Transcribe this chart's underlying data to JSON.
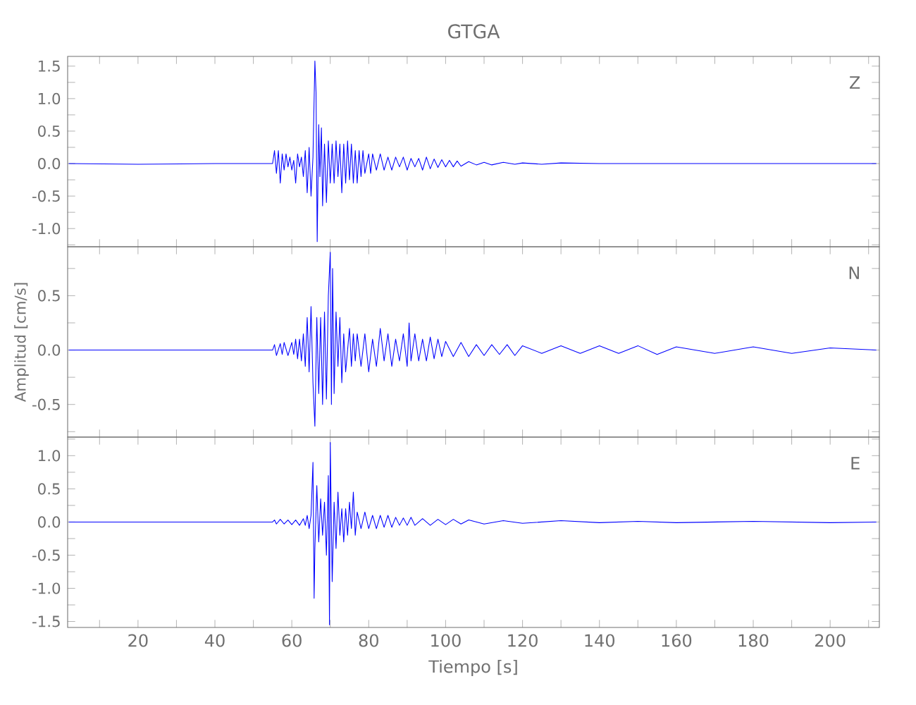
{
  "chart_data": [
    {
      "type": "line",
      "title": "GTGA",
      "annotations": [
        "Z"
      ],
      "tick_labels": "y",
      "xlim": [
        1.7,
        212.8
      ],
      "ylim": [
        -1.28,
        1.65
      ],
      "xticks": [
        {
          "value": 10,
          "label": null
        },
        {
          "value": 20,
          "label": null
        },
        {
          "value": 30,
          "label": null
        },
        {
          "value": 40,
          "label": null
        },
        {
          "value": 50,
          "label": null
        },
        {
          "value": 60,
          "label": null
        },
        {
          "value": 70,
          "label": null
        },
        {
          "value": 80,
          "label": null
        },
        {
          "value": 90,
          "label": null
        },
        {
          "value": 100,
          "label": null
        },
        {
          "value": 110,
          "label": null
        },
        {
          "value": 120,
          "label": null
        },
        {
          "value": 130,
          "label": null
        },
        {
          "value": 140,
          "label": null
        },
        {
          "value": 150,
          "label": null
        },
        {
          "value": 160,
          "label": null
        },
        {
          "value": 170,
          "label": null
        },
        {
          "value": 180,
          "label": null
        },
        {
          "value": 190,
          "label": null
        },
        {
          "value": 200,
          "label": null
        },
        {
          "value": 210,
          "label": null
        }
      ],
      "yticks": [
        {
          "value": -1.25,
          "label": null
        },
        {
          "value": -1.0,
          "label": "-1.0"
        },
        {
          "value": -0.75,
          "label": null
        },
        {
          "value": -0.5,
          "label": "-0.5"
        },
        {
          "value": -0.25,
          "label": null
        },
        {
          "value": 0.0,
          "label": "0.0"
        },
        {
          "value": 0.25,
          "label": null
        },
        {
          "value": 0.5,
          "label": "0.5"
        },
        {
          "value": 0.75,
          "label": null
        },
        {
          "value": 1.0,
          "label": "1.0"
        },
        {
          "value": 1.25,
          "label": null
        },
        {
          "value": 1.5,
          "label": "1.5"
        }
      ],
      "series": [
        {
          "color": "#0000ff",
          "x": [
            2,
            20,
            40,
            55,
            55.5,
            56,
            56.5,
            57,
            57.5,
            58,
            58.5,
            59,
            59.5,
            60,
            60.5,
            61,
            61.5,
            62,
            62.5,
            63,
            63.5,
            64,
            64.5,
            65,
            65.5,
            66,
            66.3,
            66.6,
            67,
            67.3,
            67.7,
            68,
            68.5,
            69,
            69.5,
            70,
            70.5,
            71,
            71.5,
            72,
            72.5,
            73,
            73.5,
            74,
            74.5,
            75,
            75.5,
            76,
            76.5,
            77,
            77.5,
            78,
            78.5,
            79,
            80,
            80.5,
            81,
            82,
            83,
            84,
            85,
            86,
            87,
            88,
            89,
            90,
            91,
            92,
            93,
            94,
            95,
            96,
            97,
            98,
            99,
            100,
            101,
            102,
            103,
            104,
            106,
            108,
            110,
            112,
            115,
            118,
            120,
            125,
            130,
            140,
            150,
            160,
            180,
            200,
            212
          ],
          "values": [
            0,
            -0.01,
            0,
            0,
            0.2,
            -0.15,
            0.2,
            -0.3,
            0.15,
            -0.1,
            0.15,
            -0.05,
            0.1,
            -0.1,
            0.05,
            -0.3,
            0.15,
            -0.05,
            0.1,
            -0.2,
            0.2,
            -0.45,
            0.25,
            -0.5,
            0.1,
            1.58,
            1.1,
            -1.2,
            0.6,
            -0.2,
            0.55,
            -0.65,
            0.3,
            -0.6,
            0.35,
            -0.3,
            0.3,
            -0.3,
            0.35,
            -0.2,
            0.3,
            -0.45,
            0.3,
            -0.3,
            0.35,
            -0.25,
            0.3,
            -0.3,
            0.2,
            -0.3,
            0.2,
            -0.2,
            0.2,
            -0.15,
            0.15,
            -0.15,
            0.15,
            -0.1,
            0.15,
            -0.1,
            0.1,
            -0.1,
            0.1,
            -0.05,
            0.1,
            -0.1,
            0.08,
            -0.05,
            0.08,
            -0.1,
            0.1,
            -0.08,
            0.07,
            -0.06,
            0.06,
            -0.05,
            0.05,
            -0.05,
            0.04,
            -0.04,
            0.03,
            -0.02,
            0.02,
            -0.02,
            0.02,
            -0.01,
            0.01,
            -0.01,
            0.01,
            0,
            0,
            0,
            0,
            0,
            0
          ]
        }
      ]
    },
    {
      "type": "line",
      "ylabel": "Amplitud [cm/s]",
      "annotations": [
        "N"
      ],
      "tick_labels": "y",
      "xlim": [
        1.7,
        212.8
      ],
      "ylim": [
        -0.8,
        0.95
      ],
      "xticks": [
        {
          "value": 10,
          "label": null
        },
        {
          "value": 20,
          "label": null
        },
        {
          "value": 30,
          "label": null
        },
        {
          "value": 40,
          "label": null
        },
        {
          "value": 50,
          "label": null
        },
        {
          "value": 60,
          "label": null
        },
        {
          "value": 70,
          "label": null
        },
        {
          "value": 80,
          "label": null
        },
        {
          "value": 90,
          "label": null
        },
        {
          "value": 100,
          "label": null
        },
        {
          "value": 110,
          "label": null
        },
        {
          "value": 120,
          "label": null
        },
        {
          "value": 130,
          "label": null
        },
        {
          "value": 140,
          "label": null
        },
        {
          "value": 150,
          "label": null
        },
        {
          "value": 160,
          "label": null
        },
        {
          "value": 170,
          "label": null
        },
        {
          "value": 180,
          "label": null
        },
        {
          "value": 190,
          "label": null
        },
        {
          "value": 200,
          "label": null
        },
        {
          "value": 210,
          "label": null
        }
      ],
      "yticks": [
        {
          "value": -0.75,
          "label": null
        },
        {
          "value": -0.5,
          "label": "-0.5"
        },
        {
          "value": -0.25,
          "label": null
        },
        {
          "value": 0.0,
          "label": "0.0"
        },
        {
          "value": 0.25,
          "label": null
        },
        {
          "value": 0.5,
          "label": "0.5"
        },
        {
          "value": 0.75,
          "label": null
        }
      ],
      "series": [
        {
          "color": "#0000ff",
          "x": [
            2,
            20,
            40,
            55,
            55.5,
            56,
            57,
            57.5,
            58,
            59,
            60,
            60.5,
            61,
            61.5,
            62,
            62.5,
            63,
            63.5,
            64,
            64.5,
            65,
            65.5,
            66,
            66.5,
            67,
            67.5,
            68,
            68.5,
            69,
            69.5,
            70,
            70.3,
            70.6,
            71,
            71.5,
            72,
            72.5,
            73,
            73.5,
            74,
            75,
            75.5,
            76,
            76.5,
            77,
            78,
            79,
            80,
            81,
            82,
            83,
            84,
            85,
            86,
            87,
            88,
            89,
            90,
            90.5,
            91,
            92,
            93,
            94,
            95,
            96,
            97,
            98,
            99,
            100,
            102,
            104,
            106,
            108,
            110,
            112,
            114,
            116,
            118,
            120,
            125,
            130,
            135,
            140,
            145,
            150,
            155,
            160,
            170,
            180,
            190,
            200,
            212
          ],
          "values": [
            0,
            0,
            0,
            0,
            0.05,
            -0.05,
            0.06,
            -0.04,
            0.07,
            -0.05,
            0.07,
            -0.04,
            0.1,
            -0.08,
            0.1,
            -0.1,
            0.15,
            -0.15,
            0.3,
            -0.2,
            0.4,
            -0.3,
            -0.7,
            0.3,
            -0.4,
            0.3,
            -0.5,
            0.35,
            -0.45,
            0.5,
            0.9,
            -0.5,
            0.75,
            -0.4,
            0.35,
            -0.15,
            0.3,
            -0.3,
            0.15,
            -0.2,
            0.2,
            -0.15,
            0.15,
            -0.1,
            0.15,
            -0.15,
            0.15,
            -0.2,
            0.1,
            -0.15,
            0.2,
            -0.1,
            0.15,
            -0.15,
            0.1,
            -0.1,
            0.15,
            -0.15,
            0.25,
            -0.1,
            0.15,
            -0.1,
            0.1,
            -0.1,
            0.12,
            -0.08,
            0.1,
            -0.06,
            0.08,
            -0.06,
            0.07,
            -0.06,
            0.05,
            -0.05,
            0.05,
            -0.04,
            0.05,
            -0.05,
            0.04,
            -0.03,
            0.04,
            -0.03,
            0.04,
            -0.03,
            0.04,
            -0.04,
            0.03,
            -0.03,
            0.03,
            -0.03,
            0.02,
            0
          ]
        }
      ]
    },
    {
      "type": "line",
      "xlabel": "Tiempo [s]",
      "annotations": [
        "E"
      ],
      "xlim": [
        1.7,
        212.8
      ],
      "ylim": [
        -1.59,
        1.28
      ],
      "xticks": [
        {
          "value": 10,
          "label": null
        },
        20,
        {
          "value": 30,
          "label": null
        },
        40,
        {
          "value": 50,
          "label": null
        },
        60,
        {
          "value": 70,
          "label": null
        },
        80,
        {
          "value": 90,
          "label": null
        },
        100,
        {
          "value": 110,
          "label": null
        },
        120,
        {
          "value": 130,
          "label": null
        },
        140,
        {
          "value": 150,
          "label": null
        },
        160,
        {
          "value": 170,
          "label": null
        },
        180,
        {
          "value": 190,
          "label": null
        },
        200,
        {
          "value": 210,
          "label": null
        }
      ],
      "yticks": [
        {
          "value": -1.5,
          "label": "-1.5"
        },
        {
          "value": -1.25,
          "label": null
        },
        {
          "value": -1.0,
          "label": "-1.0"
        },
        {
          "value": -0.75,
          "label": null
        },
        {
          "value": -0.5,
          "label": "-0.5"
        },
        {
          "value": -0.25,
          "label": null
        },
        {
          "value": 0.0,
          "label": "0.0"
        },
        {
          "value": 0.25,
          "label": null
        },
        {
          "value": 0.5,
          "label": "0.5"
        },
        {
          "value": 0.75,
          "label": null
        },
        {
          "value": 1.0,
          "label": "1.0"
        },
        {
          "value": 1.25,
          "label": null
        }
      ],
      "series": [
        {
          "color": "#0000ff",
          "x": [
            2,
            20,
            40,
            55,
            55.5,
            56,
            57,
            58,
            59,
            60,
            61,
            62,
            63,
            63.5,
            64,
            64.5,
            65,
            65.5,
            65.8,
            66,
            66.5,
            67,
            67.5,
            68,
            68.5,
            69,
            69.5,
            69.8,
            70,
            70.5,
            71,
            71.5,
            72,
            72.5,
            73,
            73.5,
            74,
            74.5,
            75,
            75.5,
            76,
            76.5,
            77,
            78,
            79,
            80,
            81,
            82,
            83,
            84,
            85,
            86,
            87,
            88,
            89,
            90,
            91,
            92,
            94,
            96,
            98,
            100,
            102,
            104,
            106,
            110,
            115,
            120,
            130,
            140,
            150,
            160,
            180,
            200,
            212
          ],
          "values": [
            0,
            0,
            0,
            0,
            0.03,
            -0.03,
            0.04,
            -0.03,
            0.03,
            -0.04,
            0.03,
            -0.05,
            0.05,
            -0.05,
            0.1,
            -0.1,
            0.1,
            0.9,
            -1.15,
            -0.4,
            0.55,
            -0.3,
            0.35,
            -0.2,
            0.3,
            -0.5,
            0.7,
            -1.55,
            1.2,
            -0.9,
            0.3,
            -0.4,
            0.45,
            -0.2,
            0.2,
            -0.3,
            0.2,
            -0.2,
            0.3,
            -0.1,
            0.45,
            -0.2,
            0.15,
            -0.1,
            0.15,
            -0.1,
            0.1,
            -0.1,
            0.1,
            -0.08,
            0.1,
            -0.08,
            0.07,
            -0.05,
            0.06,
            -0.05,
            0.07,
            -0.05,
            0.05,
            -0.05,
            0.04,
            -0.04,
            0.04,
            -0.03,
            0.03,
            -0.03,
            0.02,
            -0.02,
            0.02,
            -0.01,
            0.01,
            -0.01,
            0.01,
            -0.01,
            0
          ]
        }
      ]
    }
  ]
}
